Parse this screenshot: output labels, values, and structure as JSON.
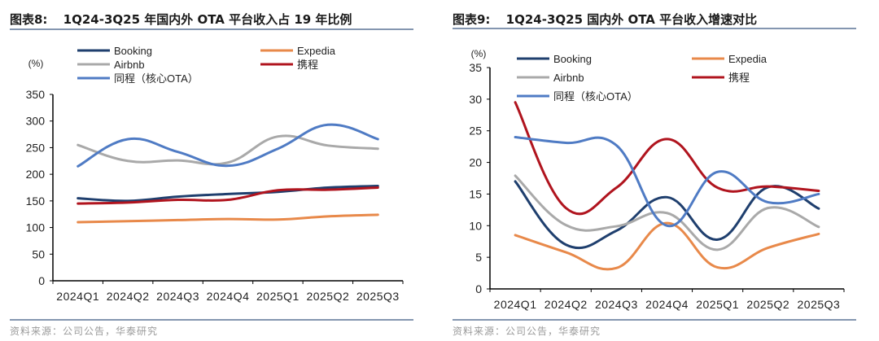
{
  "left": {
    "title_prefix": "图表8:",
    "title": "1Q24-3Q25 年国内外 OTA 平台收入占 19 年比例",
    "source": "资料来源：公司公告，华泰研究"
  },
  "right": {
    "title_prefix": "图表9:",
    "title": "1Q24-3Q25 国内外 OTA 平台收入增速对比",
    "source": "资料来源：公司公告，华泰研究"
  },
  "chart_data": [
    {
      "type": "line",
      "title": "1Q24-3Q25 年国内外 OTA 平台收入占 19 年比例",
      "xlabel": "",
      "ylabel": "(%)",
      "ylim": [
        0,
        350
      ],
      "yticks": [
        0,
        50,
        100,
        150,
        200,
        250,
        300,
        350
      ],
      "grid": false,
      "legend": "top",
      "categories": [
        "2024Q1",
        "2024Q2",
        "2024Q3",
        "2024Q4",
        "2025Q1",
        "2025Q2",
        "2025Q3"
      ],
      "series": [
        {
          "name": "Booking",
          "color": "#1f3f6e",
          "values": [
            155,
            150,
            158,
            163,
            167,
            175,
            178
          ]
        },
        {
          "name": "Expedia",
          "color": "#e8894a",
          "values": [
            110,
            112,
            114,
            116,
            115,
            121,
            124
          ]
        },
        {
          "name": "Airbnb",
          "color": "#a9a9a9",
          "values": [
            255,
            225,
            226,
            222,
            271,
            254,
            248
          ]
        },
        {
          "name": "携程",
          "color": "#b0141e",
          "values": [
            145,
            147,
            152,
            152,
            170,
            171,
            175
          ]
        },
        {
          "name": "同程（核心OTA）",
          "color": "#4f7bc4",
          "values": [
            215,
            266,
            242,
            216,
            248,
            293,
            266
          ]
        }
      ]
    },
    {
      "type": "line",
      "title": "1Q24-3Q25 国内外 OTA 平台收入增速对比",
      "xlabel": "",
      "ylabel": "(%)",
      "ylim": [
        0,
        35
      ],
      "yticks": [
        0,
        5,
        10,
        15,
        20,
        25,
        30,
        35
      ],
      "grid": false,
      "legend": "top",
      "categories": [
        "2024Q1",
        "2024Q2",
        "2024Q3",
        "2024Q4",
        "2025Q1",
        "2025Q2",
        "2025Q3"
      ],
      "series": [
        {
          "name": "Booking",
          "color": "#1f3f6e",
          "values": [
            17.0,
            7.0,
            9.2,
            14.5,
            7.8,
            16.1,
            12.7
          ]
        },
        {
          "name": "Expedia",
          "color": "#e8894a",
          "values": [
            8.5,
            5.8,
            3.3,
            10.4,
            3.4,
            6.5,
            8.7
          ]
        },
        {
          "name": "Airbnb",
          "color": "#a9a9a9",
          "values": [
            17.9,
            10.1,
            9.9,
            12.0,
            6.2,
            12.8,
            9.8
          ]
        },
        {
          "name": "携程",
          "color": "#b0141e",
          "values": [
            29.5,
            12.8,
            16.0,
            23.7,
            16.0,
            16.2,
            15.5
          ]
        },
        {
          "name": "同程（核心OTA）",
          "color": "#4f7bc4",
          "values": [
            24.0,
            23.1,
            22.7,
            10.0,
            18.5,
            13.7,
            15.0
          ]
        }
      ]
    }
  ]
}
